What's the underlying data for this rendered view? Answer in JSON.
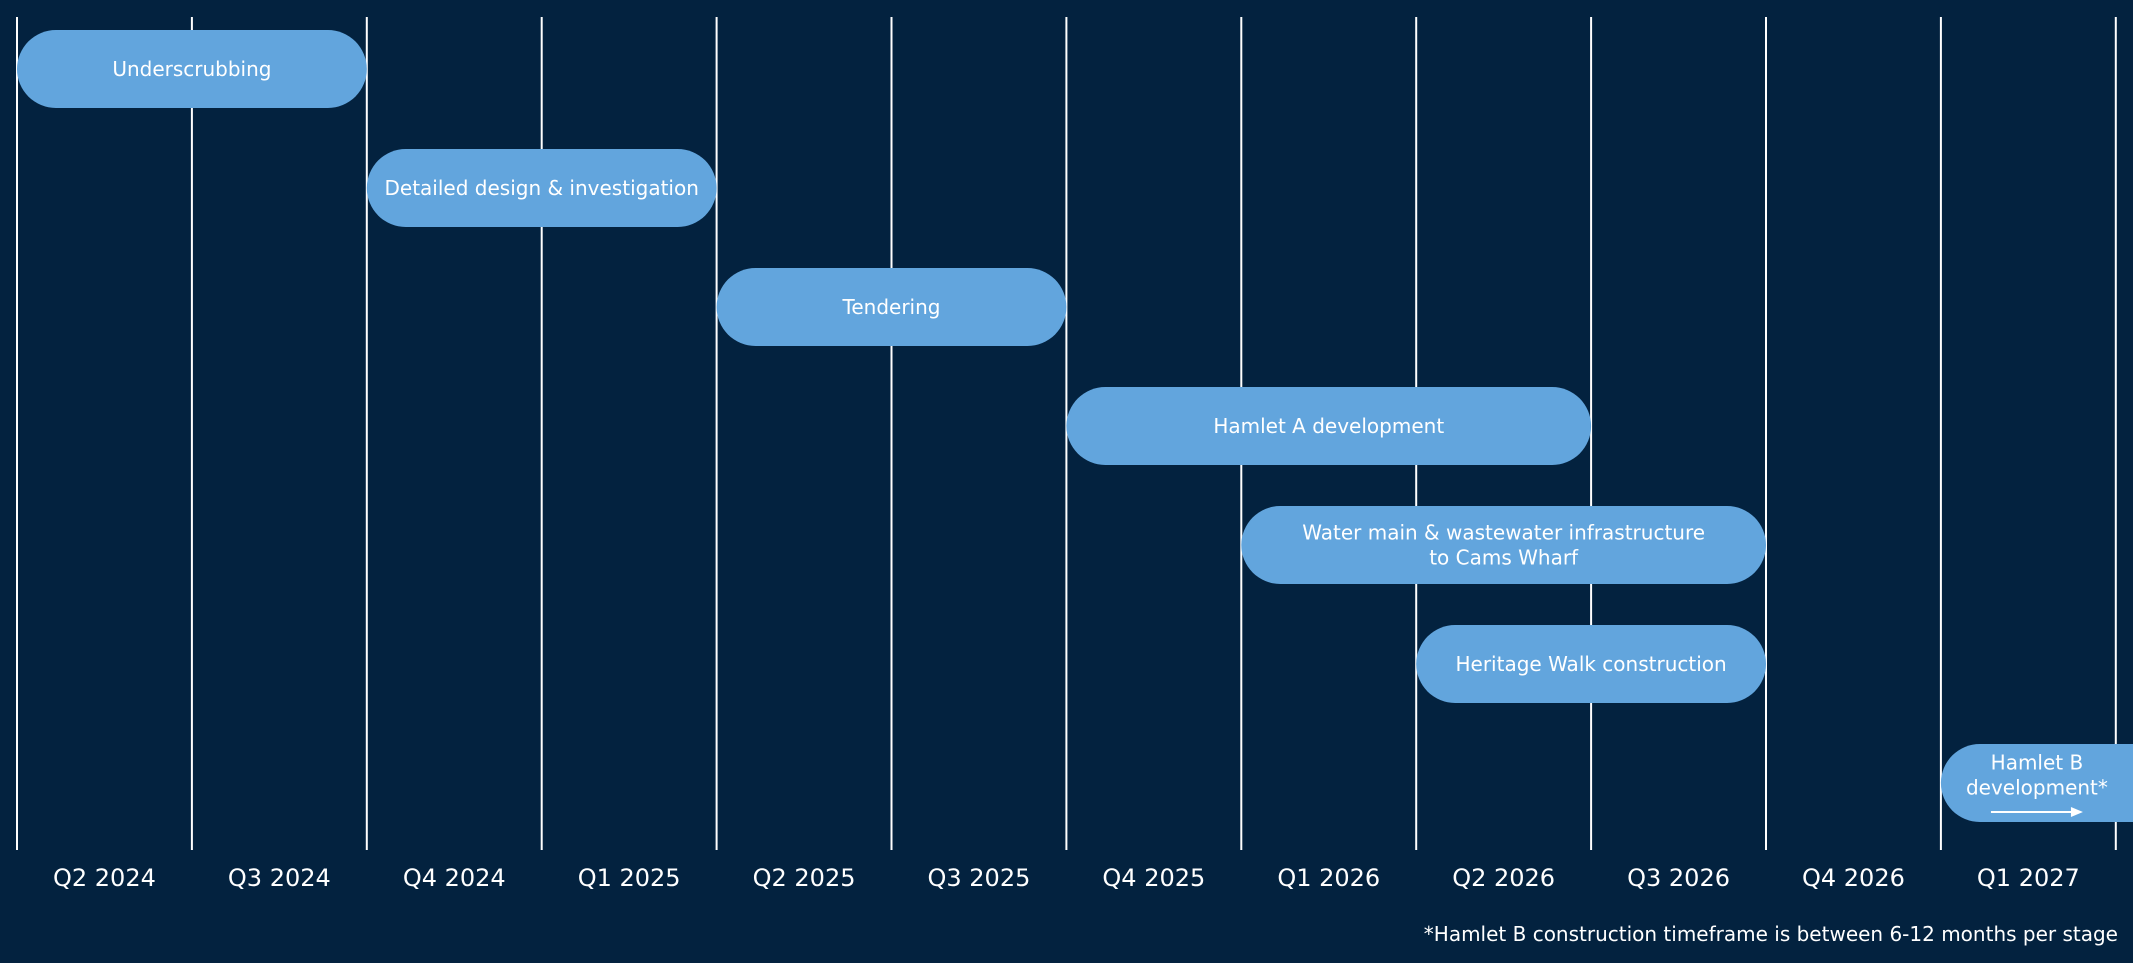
{
  "chart_data": {
    "type": "gantt",
    "title": "",
    "categories": [
      "Q2 2024",
      "Q3 2024",
      "Q4 2024",
      "Q1 2025",
      "Q2 2025",
      "Q3 2025",
      "Q4 2025",
      "Q1 2026",
      "Q2 2026",
      "Q3 2026",
      "Q4 2026",
      "Q1 2027"
    ],
    "tasks": [
      {
        "label": [
          "Underscrubbing"
        ],
        "start": "Q2 2024",
        "end": "Q3 2024"
      },
      {
        "label": [
          "Detailed design & investigation"
        ],
        "start": "Q4 2024",
        "end": "Q1 2025"
      },
      {
        "label": [
          "Tendering"
        ],
        "start": "Q2 2025",
        "end": "Q3 2025"
      },
      {
        "label": [
          "Hamlet A development"
        ],
        "start": "Q4 2025",
        "end": "Q2 2026"
      },
      {
        "label": [
          "Water main & wastewater infrastructure",
          "to Cams Wharf"
        ],
        "start": "Q1 2026",
        "end": "Q3 2026"
      },
      {
        "label": [
          "Heritage Walk construction"
        ],
        "start": "Q2 2026",
        "end": "Q3 2026"
      },
      {
        "label": [
          "Hamlet B",
          "development*"
        ],
        "start": "Q1 2027",
        "end": "Q1 2027",
        "continues": true
      }
    ],
    "footnote": "*Hamlet B construction timeframe is between 6-12 months per stage",
    "colors": {
      "background": "#03223f",
      "bar": "#62a5dd",
      "gridline": "#ffffff",
      "text": "#ffffff"
    },
    "grid": true
  }
}
